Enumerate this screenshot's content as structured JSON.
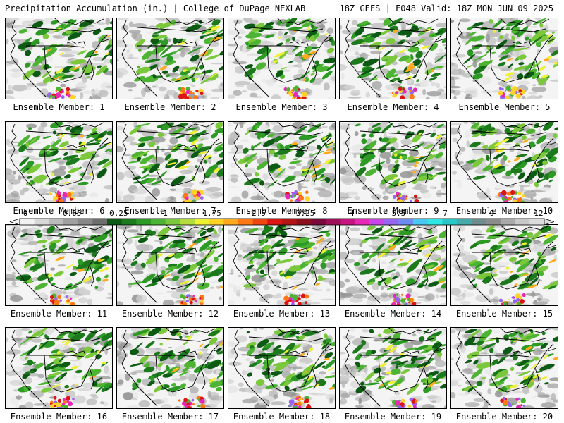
{
  "header": {
    "title_left": "Precipitation Accumulation (in.) | College of DuPage NEXLAB",
    "title_right": "18Z GEFS | F048 Valid: 18Z MON JUN 09 2025"
  },
  "panels": [
    {
      "caption": "Ensemble Member: 1"
    },
    {
      "caption": "Ensemble Member: 2"
    },
    {
      "caption": "Ensemble Member: 3"
    },
    {
      "caption": "Ensemble Member: 4"
    },
    {
      "caption": "Ensemble Member: 5"
    },
    {
      "caption": "Ensemble Member: 6"
    },
    {
      "caption": "Ensemble Member: 7"
    },
    {
      "caption": "Ensemble Member: 8"
    },
    {
      "caption": "Ensemble Member: 9"
    },
    {
      "caption": "Ensemble Member: 10"
    },
    {
      "caption": "Ensemble Member: 11"
    },
    {
      "caption": "Ensemble Member: 12"
    },
    {
      "caption": "Ensemble Member: 13"
    },
    {
      "caption": "Ensemble Member: 14"
    },
    {
      "caption": "Ensemble Member: 15"
    },
    {
      "caption": "Ensemble Member: 16"
    },
    {
      "caption": "Ensemble Member: 17"
    },
    {
      "caption": "Ensemble Member: 18"
    },
    {
      "caption": "Ensemble Member: 19"
    },
    {
      "caption": "Ensemble Member: 20"
    }
  ],
  "colorbar": {
    "labels": [
      "0",
      "0.05",
      "0.25",
      "1",
      "1.75",
      "2.5",
      "3.25",
      "4",
      "5.5",
      "7",
      "9",
      "12"
    ],
    "colors": [
      "#f2f2f2",
      "#d8d8d8",
      "#bcbcbc",
      "#a0a0a0",
      "#888888",
      "#6e6e6e",
      "#0c5a14",
      "#1c7a1c",
      "#2e9a26",
      "#4cb432",
      "#7cc83c",
      "#b4dc3c",
      "#eef032",
      "#ffd228",
      "#ffaa1e",
      "#ff7814",
      "#f04614",
      "#dc1414",
      "#b41414",
      "#8c0f1e",
      "#780a3c",
      "#a0105a",
      "#c81482",
      "#e628b4",
      "#c846e6",
      "#9664f0",
      "#6e8cf0",
      "#46c8f0",
      "#32e6e6",
      "#28c8c8",
      "#46aaaa",
      "#6e8c8c",
      "#8c8c8c",
      "#aaaaaa",
      "#c8c8c8",
      "#dcdcdc"
    ]
  }
}
